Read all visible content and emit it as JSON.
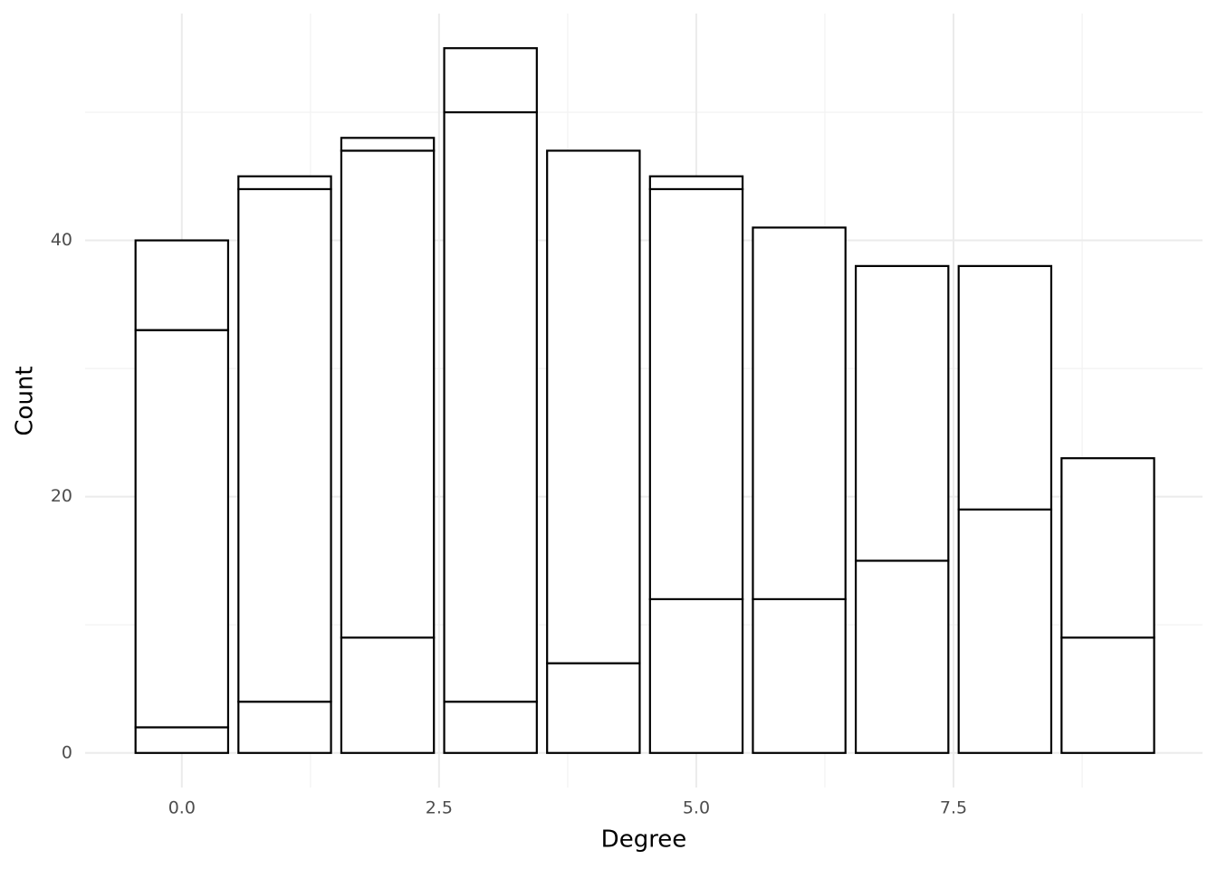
{
  "chart_data": {
    "type": "stacked_bar",
    "xlabel": "Degree",
    "ylabel": "Count",
    "x": [
      0,
      1,
      2,
      3,
      4,
      5,
      6,
      7,
      8,
      9
    ],
    "series": [
      {
        "color": "#ffffff",
        "values": [
          2,
          4,
          9,
          4,
          7,
          12,
          12,
          15,
          19,
          9
        ]
      },
      {
        "color": "#ffffff",
        "values": [
          31,
          40,
          38,
          46,
          40,
          32,
          29,
          23,
          19,
          14
        ]
      },
      {
        "color": "#ffffff",
        "values": [
          7,
          1,
          1,
          5,
          0,
          1,
          0,
          0,
          0,
          0
        ]
      }
    ],
    "outline": "#000000",
    "xlim": [
      -0.94,
      9.92
    ],
    "ylim": [
      -2.7,
      57.7
    ],
    "xticks": [
      {
        "value": 0,
        "label": "0.0"
      },
      2.5,
      {
        "value": 5,
        "label": "5.0"
      },
      7.5
    ],
    "yticks": [
      0,
      20,
      40
    ],
    "xminor_ticks": [
      1.25,
      3.75,
      6.25,
      8.75
    ],
    "yminor_ticks": [
      10,
      30,
      50
    ],
    "grid": true
  }
}
